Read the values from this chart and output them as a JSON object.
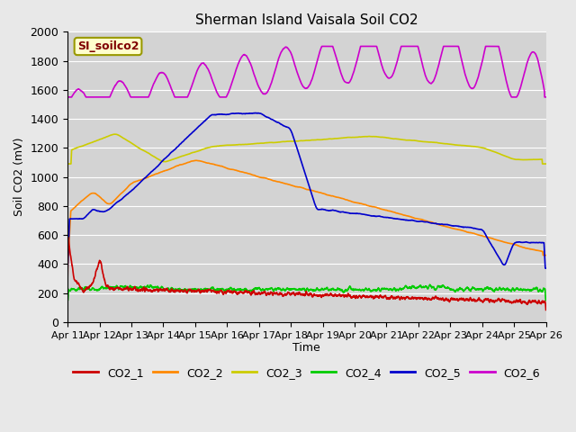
{
  "title": "Sherman Island Vaisala Soil CO2",
  "ylabel": "Soil CO2 (mV)",
  "xlabel": "Time",
  "watermark": "SI_soilco2",
  "ylim": [
    0,
    2000
  ],
  "yticks": [
    0,
    200,
    400,
    600,
    800,
    1000,
    1200,
    1400,
    1600,
    1800,
    2000
  ],
  "xtick_labels": [
    "Apr 11",
    "Apr 12",
    "Apr 13",
    "Apr 14",
    "Apr 15",
    "Apr 16",
    "Apr 17",
    "Apr 18",
    "Apr 19",
    "Apr 20",
    "Apr 21",
    "Apr 22",
    "Apr 23",
    "Apr 24",
    "Apr 25",
    "Apr 26"
  ],
  "colors": {
    "CO2_1": "#cc0000",
    "CO2_2": "#ff8800",
    "CO2_3": "#cccc00",
    "CO2_4": "#00cc00",
    "CO2_5": "#0000cc",
    "CO2_6": "#cc00cc"
  },
  "line_width": 1.2
}
